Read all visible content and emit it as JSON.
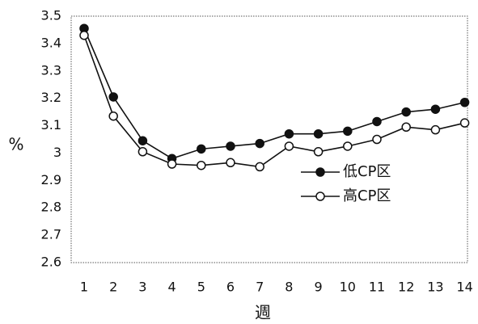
{
  "chart_data": {
    "type": "line",
    "x": [
      1,
      2,
      3,
      4,
      5,
      6,
      7,
      8,
      9,
      10,
      11,
      12,
      13,
      14
    ],
    "xlabel": "週",
    "ylabel": "%",
    "ylim": [
      2.6,
      3.5
    ],
    "yticks": [
      "2.6",
      "2.7",
      "2.8",
      "2.9",
      "3",
      "3.1",
      "3.2",
      "3.3",
      "3.4",
      "3.5"
    ],
    "xticks": [
      "1",
      "2",
      "3",
      "4",
      "5",
      "6",
      "7",
      "8",
      "9",
      "10",
      "11",
      "12",
      "13",
      "14"
    ],
    "grid": false,
    "legend_position": "right-middle",
    "series": [
      {
        "name": "低CP区",
        "marker": "filled-circle",
        "values": [
          3.455,
          3.205,
          3.045,
          2.98,
          3.015,
          3.025,
          3.035,
          3.07,
          3.07,
          3.08,
          3.115,
          3.15,
          3.16,
          3.185
        ]
      },
      {
        "name": "高CP区",
        "marker": "open-circle",
        "values": [
          3.43,
          3.135,
          3.005,
          2.96,
          2.955,
          2.965,
          2.95,
          3.025,
          3.005,
          3.025,
          3.05,
          3.095,
          3.085,
          3.11
        ]
      }
    ]
  }
}
